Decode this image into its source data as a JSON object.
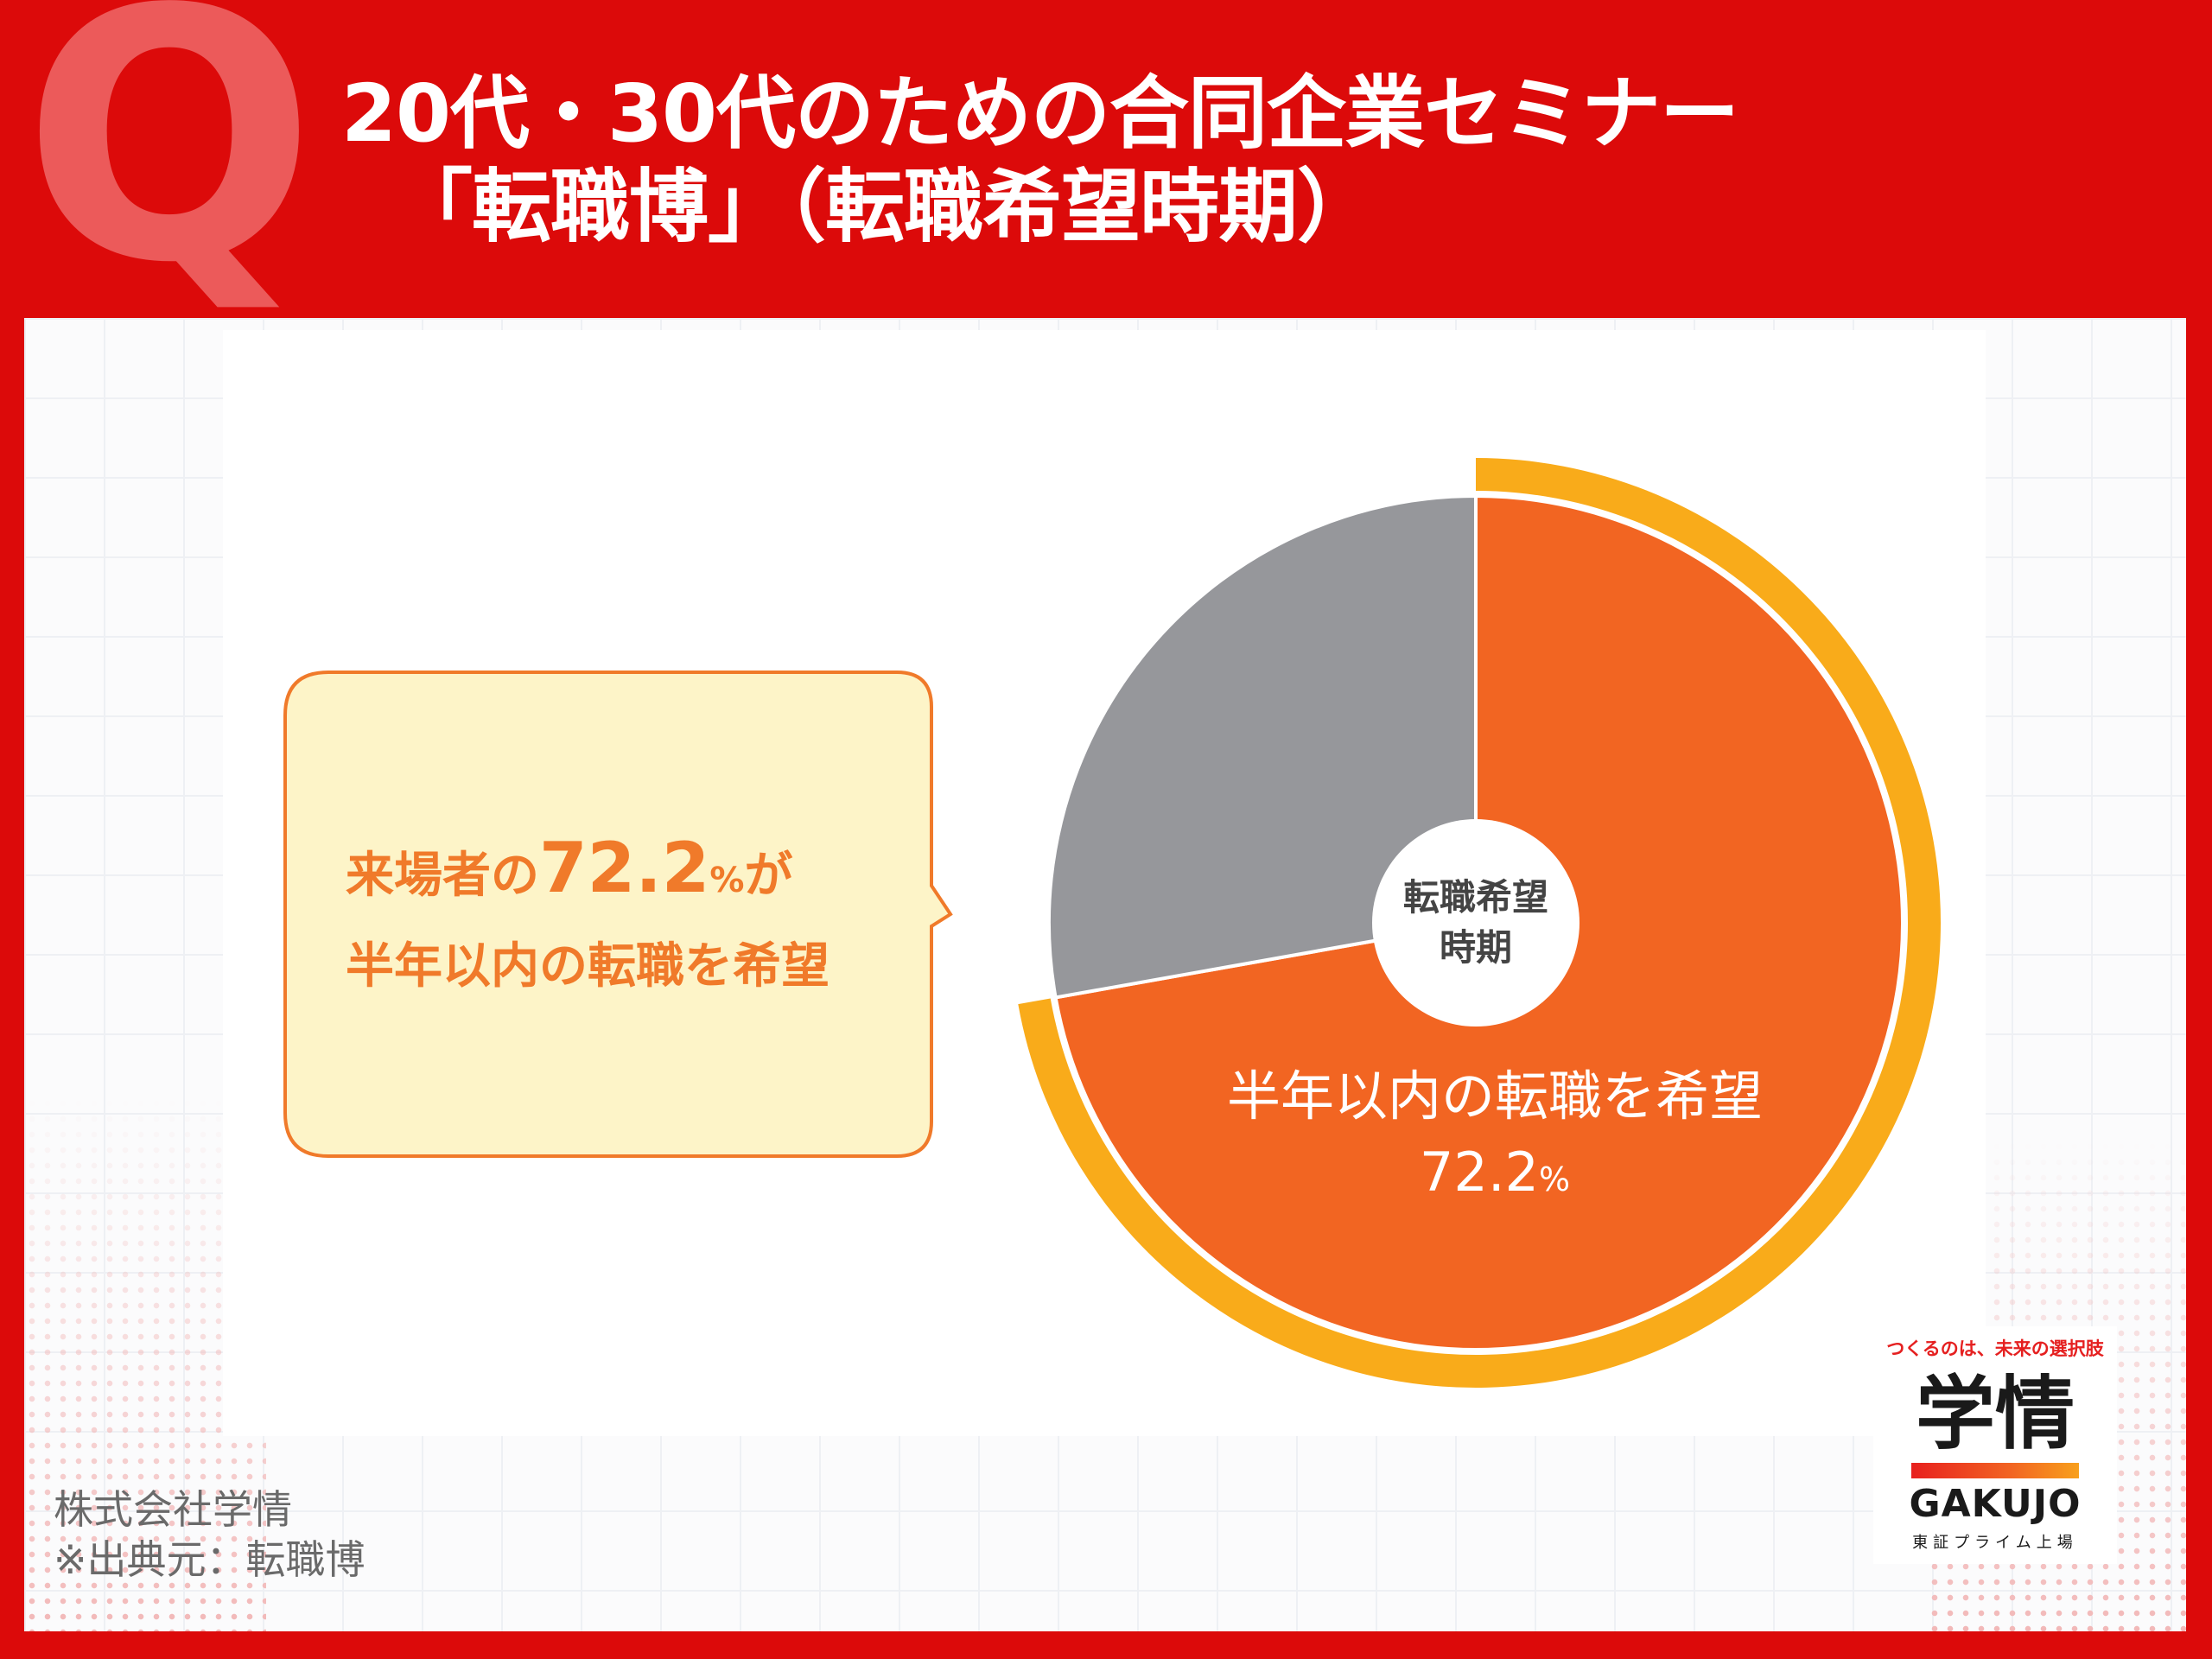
{
  "header": {
    "q_mark": "Q",
    "title_line_1": "20代・30代のための合同企業セミナー",
    "title_line_2": "「転職博」（転職希望時期）"
  },
  "callout": {
    "line1_prefix": "来場者の",
    "line1_value": "72.2",
    "line1_percent": "%",
    "line1_suffix": "が",
    "line2": "半年以内の転職を希望"
  },
  "chart_data": {
    "type": "pie",
    "title": "",
    "center_label_line1": "転職希望",
    "center_label_line2": "時期",
    "slices": [
      {
        "label": "半年以内の転職を希望",
        "value": 72.2,
        "percent_label": "72.2",
        "percent_sign": "%",
        "color": "#f26522",
        "highlighted": true
      },
      {
        "label": "",
        "value": 27.8,
        "color": "#96979b",
        "highlighted": false
      }
    ],
    "highlight_ring_color": "#f9ab1a",
    "start_angle": "12 o'clock",
    "direction": "clockwise"
  },
  "logo": {
    "tagline": "つくるのは、未来の選択肢",
    "kanji": "学情",
    "roman": "GAKUJO",
    "listing": "東証プライム上場"
  },
  "footer": {
    "company": "株式会社学情",
    "source": "※出典元：転職博"
  },
  "colors": {
    "frame_red": "#dc0a0a",
    "q_mark": "#ec5a5a",
    "callout_fill": "#fdf4c8",
    "callout_border": "#f07a2a",
    "callout_text": "#f07a2a"
  }
}
